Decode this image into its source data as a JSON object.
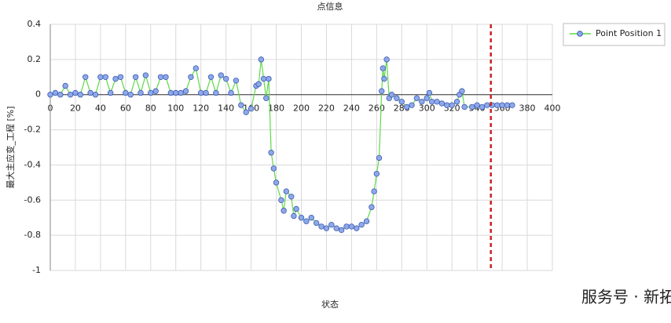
{
  "chart_data": {
    "type": "line",
    "title": "点信息",
    "xlabel": "状态",
    "ylabel": "最大主应变_工程 [%]",
    "x": [
      0,
      4,
      8,
      12,
      16,
      20,
      24,
      28,
      32,
      36,
      40,
      44,
      48,
      52,
      56,
      60,
      64,
      68,
      72,
      76,
      80,
      84,
      88,
      92,
      96,
      100,
      104,
      108,
      112,
      116,
      120,
      124,
      128,
      132,
      136,
      140,
      144,
      148,
      152,
      156,
      160,
      164,
      166,
      168,
      170,
      172,
      174,
      176,
      178,
      180,
      184,
      186,
      188,
      192,
      194,
      196,
      200,
      204,
      208,
      212,
      216,
      220,
      224,
      228,
      232,
      236,
      240,
      244,
      248,
      252,
      256,
      258,
      260,
      262,
      264,
      265,
      266,
      268,
      270,
      272,
      276,
      280,
      284,
      288,
      292,
      296,
      300,
      302,
      304,
      308,
      312,
      316,
      320,
      324,
      326,
      328,
      330,
      336,
      340,
      344,
      348,
      352,
      356,
      360,
      364,
      368
    ],
    "series": [
      {
        "name": "Point Position 1",
        "color": "#5fd94a",
        "marker_fill": "#8fa8ea",
        "marker_stroke": "#3b5cb0",
        "values": [
          0.0,
          0.01,
          0.0,
          0.05,
          0.0,
          0.01,
          0.0,
          0.1,
          0.01,
          0.0,
          0.1,
          0.1,
          0.01,
          0.09,
          0.1,
          0.01,
          0.0,
          0.1,
          0.01,
          0.11,
          0.01,
          0.02,
          0.1,
          0.1,
          0.01,
          0.01,
          0.01,
          0.02,
          0.1,
          0.15,
          0.01,
          0.01,
          0.1,
          0.01,
          0.11,
          0.09,
          0.01,
          0.08,
          -0.06,
          -0.1,
          -0.08,
          0.05,
          0.06,
          0.2,
          0.09,
          -0.02,
          0.09,
          -0.33,
          -0.42,
          -0.5,
          -0.6,
          -0.66,
          -0.55,
          -0.58,
          -0.69,
          -0.65,
          -0.7,
          -0.72,
          -0.7,
          -0.73,
          -0.75,
          -0.76,
          -0.74,
          -0.76,
          -0.77,
          -0.75,
          -0.75,
          -0.76,
          -0.74,
          -0.72,
          -0.64,
          -0.55,
          -0.45,
          -0.36,
          0.02,
          0.15,
          0.09,
          0.2,
          -0.02,
          0.0,
          -0.02,
          -0.04,
          -0.07,
          -0.06,
          -0.02,
          -0.04,
          -0.02,
          0.01,
          -0.04,
          -0.04,
          -0.05,
          -0.06,
          -0.06,
          -0.04,
          0.0,
          0.02,
          -0.07,
          -0.07,
          -0.06,
          -0.07,
          -0.06,
          -0.06,
          -0.06,
          -0.06,
          -0.06,
          -0.06
        ]
      }
    ],
    "xlim": [
      0,
      400
    ],
    "xticks": [
      0,
      20,
      40,
      60,
      80,
      100,
      120,
      140,
      160,
      180,
      200,
      220,
      240,
      260,
      280,
      300,
      320,
      340,
      360,
      380,
      400
    ],
    "ylim": [
      -1,
      0.4
    ],
    "yticks": [
      0.4,
      0.2,
      0,
      -0.2,
      -0.4,
      -0.6,
      -0.8,
      -1
    ],
    "grid": true,
    "marker_line": {
      "x": 351,
      "color": "#cc2222"
    },
    "legend": "upper right",
    "watermark": "服务号 · 新拓三维"
  }
}
